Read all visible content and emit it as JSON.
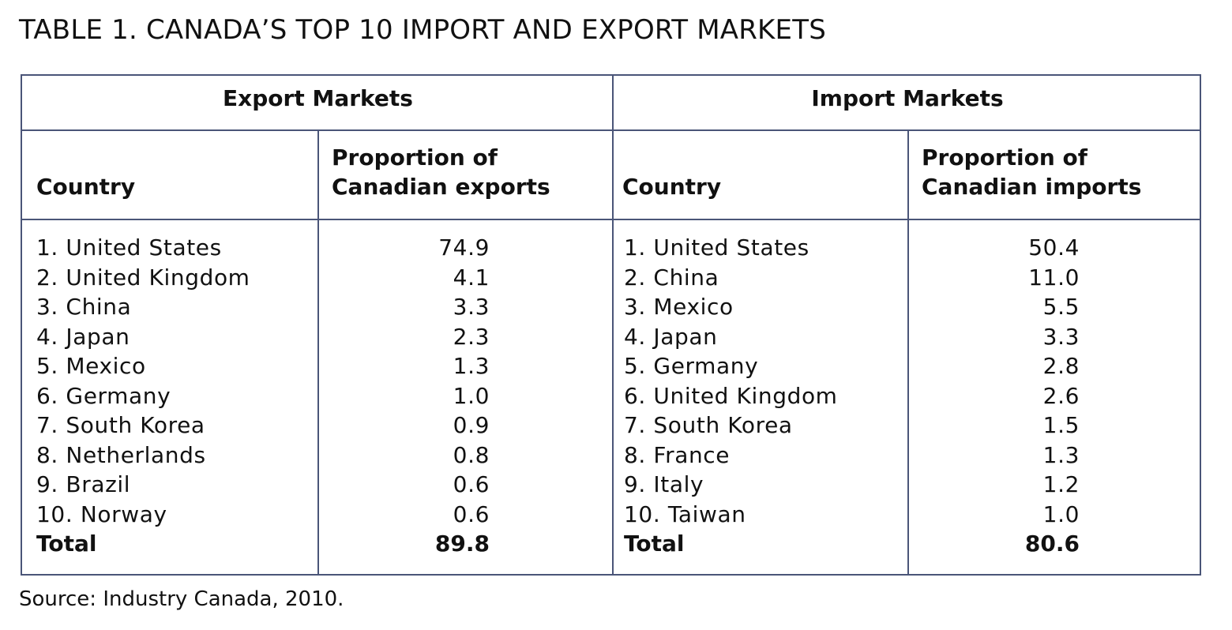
{
  "title": "TABLE 1. CANADA’S TOP 10 IMPORT AND EXPORT MARKETS",
  "export": {
    "group_label": "Export Markets",
    "country_header": "Country",
    "proportion_header_line1": "Proportion of",
    "proportion_header_line2": "Canadian exports",
    "rows": [
      {
        "country": "1. United States",
        "value": "74.9"
      },
      {
        "country": "2. United Kingdom",
        "value": "4.1"
      },
      {
        "country": "3. China",
        "value": "3.3"
      },
      {
        "country": "4. Japan",
        "value": "2.3"
      },
      {
        "country": "5. Mexico",
        "value": "1.3"
      },
      {
        "country": "6. Germany",
        "value": "1.0"
      },
      {
        "country": "7. South Korea",
        "value": "0.9"
      },
      {
        "country": "8. Netherlands",
        "value": "0.8"
      },
      {
        "country": "9. Brazil",
        "value": "0.6"
      },
      {
        "country": "10. Norway",
        "value": "0.6"
      }
    ],
    "total_label": "Total",
    "total_value": "89.8"
  },
  "import": {
    "group_label": "Import Markets",
    "country_header": "Country",
    "proportion_header_line1": "Proportion of",
    "proportion_header_line2": "Canadian imports",
    "rows": [
      {
        "country": "1. United States",
        "value": "50.4"
      },
      {
        "country": "2. China",
        "value": "11.0"
      },
      {
        "country": "3. Mexico",
        "value": "5.5"
      },
      {
        "country": "4. Japan",
        "value": "3.3"
      },
      {
        "country": "5. Germany",
        "value": "2.8"
      },
      {
        "country": "6. United Kingdom",
        "value": "2.6"
      },
      {
        "country": "7. South Korea",
        "value": "1.5"
      },
      {
        "country": "8. France",
        "value": "1.3"
      },
      {
        "country": "9. Italy",
        "value": "1.2"
      },
      {
        "country": "10. Taiwan",
        "value": "1.0"
      }
    ],
    "total_label": "Total",
    "total_value": "80.6"
  },
  "source": "Source: Industry Canada, 2010.",
  "colors": {
    "rule": "#4a5578",
    "text": "#111111"
  }
}
